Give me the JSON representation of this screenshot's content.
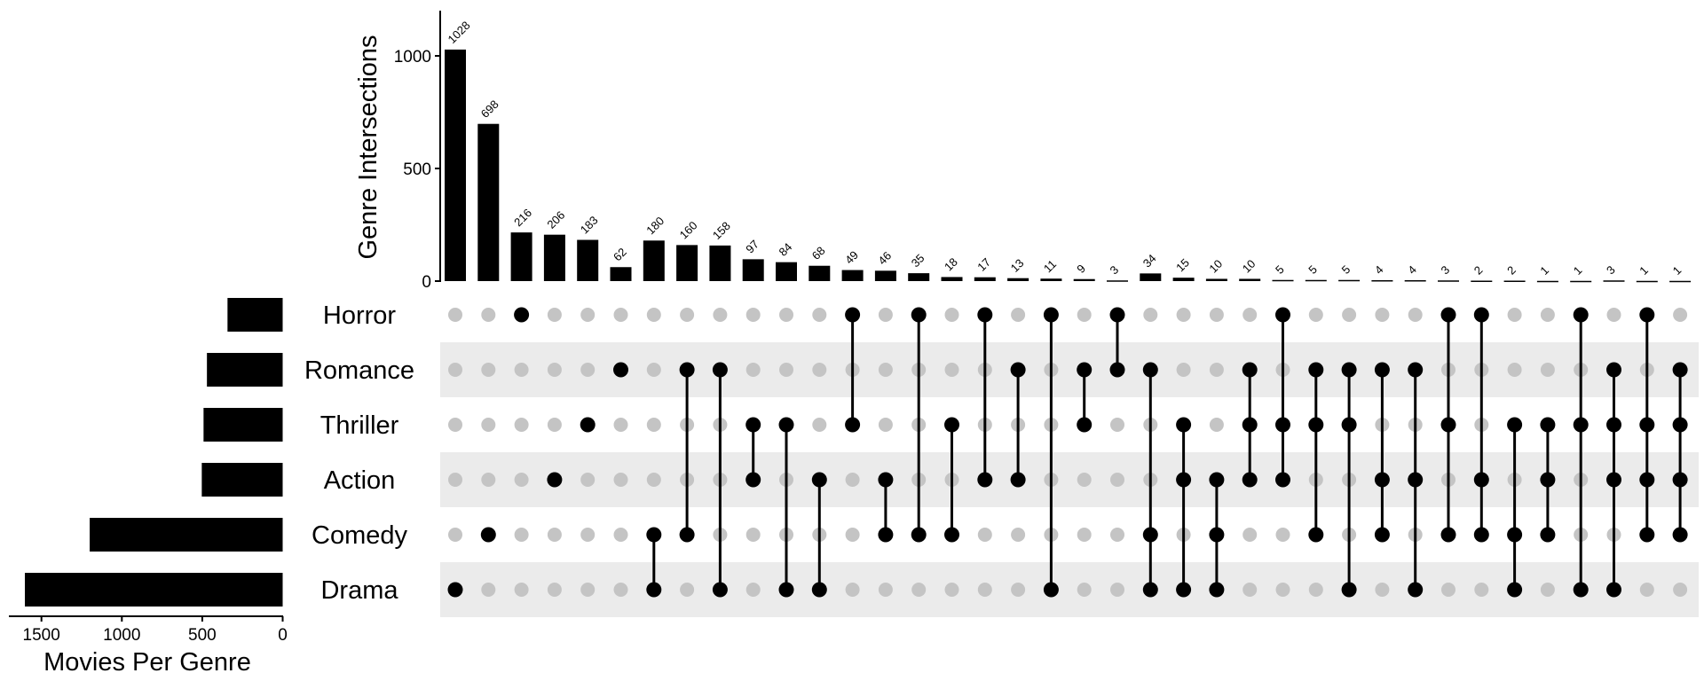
{
  "chart_data": [
    {
      "type": "bar",
      "role": "intersection-sizes",
      "ylabel": "Genre Intersections",
      "ylim": [
        0,
        1200
      ],
      "yticks": [
        "0",
        "500",
        "1000"
      ],
      "grid": false,
      "bar_color": "#000000",
      "values": [
        1028,
        698,
        216,
        206,
        183,
        62,
        180,
        160,
        158,
        97,
        84,
        68,
        49,
        46,
        35,
        18,
        17,
        13,
        11,
        9,
        3,
        34,
        15,
        10,
        10,
        5,
        5,
        5,
        4,
        4,
        3,
        2,
        2,
        1,
        1,
        3,
        1,
        1
      ],
      "data_labels": [
        "1028",
        "698",
        "216",
        "206",
        "183",
        "62",
        "180",
        "160",
        "158",
        "97",
        "84",
        "68",
        "49",
        "46",
        "35",
        "18",
        "17",
        "13",
        "11",
        "9",
        "3",
        "34",
        "15",
        "10",
        "10",
        "5",
        "5",
        "5",
        "4",
        "4",
        "3",
        "2",
        "2",
        "1",
        "1",
        "3",
        "1",
        "1"
      ]
    },
    {
      "type": "bar",
      "role": "set-sizes",
      "orientation": "horizontal-reversed",
      "xlabel": "Movies Per Genre",
      "xlim": [
        1700,
        0
      ],
      "xticks": [
        "1500",
        "1000",
        "500",
        "0"
      ],
      "categories": [
        "Horror",
        "Romance",
        "Thriller",
        "Action",
        "Comedy",
        "Drama"
      ],
      "values": [
        343,
        471,
        492,
        503,
        1200,
        1603
      ]
    },
    {
      "type": "table",
      "role": "intersection-matrix",
      "sets": [
        "Horror",
        "Romance",
        "Thriller",
        "Action",
        "Comedy",
        "Drama"
      ],
      "active_dot_color": "#000000",
      "inactive_dot_color": "#c4c4c4",
      "band_color": "#ebebeb",
      "memberships": [
        [
          "Drama"
        ],
        [
          "Comedy"
        ],
        [
          "Horror"
        ],
        [
          "Action"
        ],
        [
          "Thriller"
        ],
        [
          "Romance"
        ],
        [
          "Comedy",
          "Drama"
        ],
        [
          "Romance",
          "Comedy"
        ],
        [
          "Romance",
          "Drama"
        ],
        [
          "Thriller",
          "Action"
        ],
        [
          "Thriller",
          "Drama"
        ],
        [
          "Action",
          "Drama"
        ],
        [
          "Horror",
          "Thriller"
        ],
        [
          "Action",
          "Comedy"
        ],
        [
          "Horror",
          "Comedy"
        ],
        [
          "Thriller",
          "Comedy"
        ],
        [
          "Horror",
          "Action"
        ],
        [
          "Romance",
          "Action"
        ],
        [
          "Horror",
          "Drama"
        ],
        [
          "Romance",
          "Thriller"
        ],
        [
          "Horror",
          "Romance"
        ],
        [
          "Romance",
          "Comedy",
          "Drama"
        ],
        [
          "Thriller",
          "Action",
          "Drama"
        ],
        [
          "Action",
          "Comedy",
          "Drama"
        ],
        [
          "Romance",
          "Thriller",
          "Action"
        ],
        [
          "Horror",
          "Thriller",
          "Action"
        ],
        [
          "Romance",
          "Thriller",
          "Comedy"
        ],
        [
          "Romance",
          "Thriller",
          "Drama"
        ],
        [
          "Romance",
          "Action",
          "Comedy"
        ],
        [
          "Romance",
          "Action",
          "Drama"
        ],
        [
          "Horror",
          "Thriller",
          "Comedy"
        ],
        [
          "Horror",
          "Action",
          "Comedy"
        ],
        [
          "Thriller",
          "Comedy",
          "Drama"
        ],
        [
          "Thriller",
          "Action",
          "Comedy"
        ],
        [
          "Horror",
          "Thriller",
          "Drama"
        ],
        [
          "Romance",
          "Thriller",
          "Action",
          "Drama"
        ],
        [
          "Horror",
          "Thriller",
          "Action",
          "Comedy"
        ],
        [
          "Romance",
          "Thriller",
          "Action",
          "Comedy"
        ]
      ]
    }
  ]
}
